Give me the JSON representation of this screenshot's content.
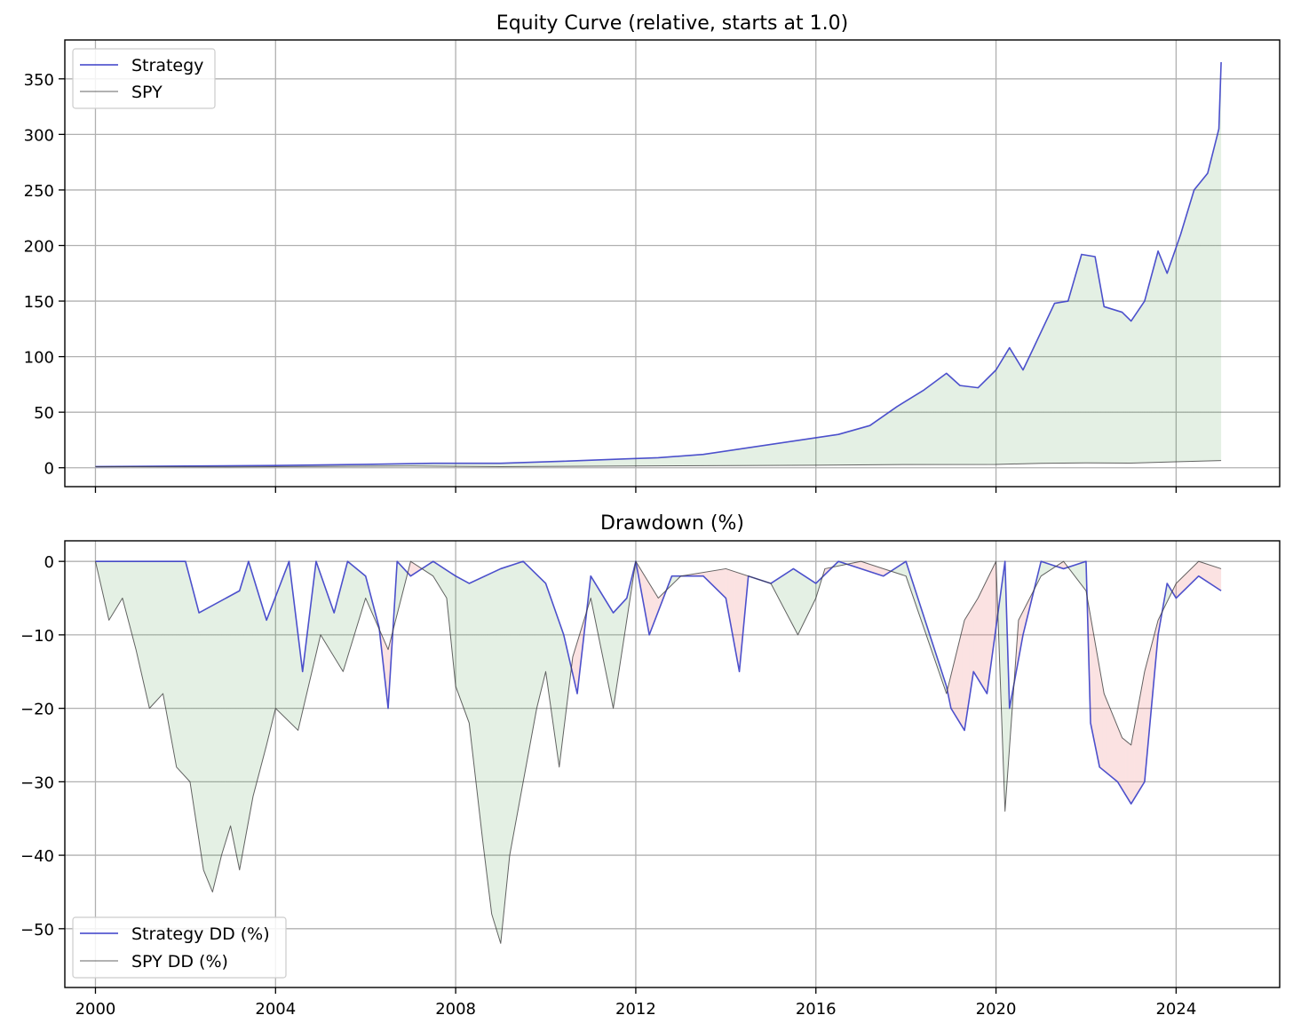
{
  "chart_data": [
    {
      "type": "line",
      "title": "Equity Curve (relative, starts at 1.0)",
      "xlabel": "",
      "ylabel": "",
      "xlim": [
        1999.32,
        2026.3
      ],
      "ylim": [
        -17,
        385
      ],
      "x_ticks": [
        2000,
        2004,
        2008,
        2012,
        2016,
        2020,
        2024
      ],
      "y_ticks": [
        0,
        50,
        100,
        150,
        200,
        250,
        300,
        350
      ],
      "y_tick_labels": [
        "0",
        "50",
        "100",
        "150",
        "200",
        "250",
        "300",
        "350"
      ],
      "show_x_tick_labels": false,
      "grid": true,
      "legend_position": "upper-left",
      "fill_between": {
        "color": "#2e8b2e",
        "opacity": 0.13,
        "where": "strategy above SPY"
      },
      "series": [
        {
          "name": "Strategy",
          "color": "#3a3ec8",
          "x": [
            2000,
            2002,
            2004,
            2006,
            2007.5,
            2009,
            2010.5,
            2011.8,
            2012.5,
            2013.5,
            2014.5,
            2015.5,
            2016.5,
            2017.2,
            2017.8,
            2018.4,
            2018.9,
            2019.2,
            2019.6,
            2020.0,
            2020.3,
            2020.6,
            2020.8,
            2021.3,
            2021.6,
            2021.9,
            2022.2,
            2022.4,
            2022.8,
            2023.0,
            2023.3,
            2023.6,
            2023.8,
            2024.1,
            2024.4,
            2024.7,
            2024.95,
            2025.0
          ],
          "y": [
            1,
            1.5,
            2,
            3,
            4,
            4,
            6,
            8,
            9,
            12,
            18,
            24,
            30,
            38,
            55,
            70,
            85,
            74,
            72,
            88,
            108,
            88,
            105,
            148,
            150,
            192,
            190,
            145,
            140,
            132,
            150,
            195,
            175,
            210,
            250,
            265,
            305,
            365
          ]
        },
        {
          "name": "SPY",
          "color": "#3d3d3d",
          "x": [
            2000,
            2003,
            2007,
            2009,
            2013,
            2016,
            2018,
            2020,
            2021,
            2022,
            2023,
            2024,
            2025
          ],
          "y": [
            1,
            0.8,
            1.6,
            1.0,
            1.8,
            2.3,
            2.9,
            3.0,
            4.0,
            4.4,
            4.2,
            5.4,
            6.5
          ]
        }
      ]
    },
    {
      "type": "line",
      "title": "Drawdown (%)",
      "xlabel": "",
      "ylabel": "",
      "xlim": [
        1999.32,
        2026.3
      ],
      "ylim": [
        -58,
        2.8
      ],
      "x_ticks": [
        2000,
        2004,
        2008,
        2012,
        2016,
        2020,
        2024
      ],
      "x_tick_labels": [
        "2000",
        "2004",
        "2008",
        "2012",
        "2016",
        "2020",
        "2024"
      ],
      "y_ticks": [
        0,
        -10,
        -20,
        -30,
        -40,
        -50
      ],
      "y_tick_labels": [
        "0",
        "−10",
        "−20",
        "−30",
        "−40",
        "−50"
      ],
      "grid": true,
      "legend_position": "lower-left",
      "fill_between_positive": {
        "color": "#2e8b2e",
        "opacity": 0.13,
        "where": "strategy DD above SPY DD"
      },
      "fill_between_negative": {
        "color": "#e33b3b",
        "opacity": 0.15,
        "where": "strategy DD below SPY DD"
      },
      "series": [
        {
          "name": "Strategy DD (%)",
          "color": "#3a3ec8",
          "x": [
            2000,
            2002.0,
            2002.3,
            2003.2,
            2003.4,
            2003.8,
            2004.3,
            2004.6,
            2004.9,
            2005.3,
            2005.6,
            2006.0,
            2006.3,
            2006.5,
            2006.7,
            2007.0,
            2007.5,
            2008.0,
            2008.3,
            2009.0,
            2009.5,
            2010.0,
            2010.4,
            2010.7,
            2011.0,
            2011.5,
            2011.8,
            2012.0,
            2012.3,
            2012.8,
            2013.5,
            2014.0,
            2014.3,
            2014.5,
            2015.0,
            2015.5,
            2016.0,
            2016.5,
            2017.5,
            2018.0,
            2018.9,
            2019.0,
            2019.3,
            2019.5,
            2019.8,
            2020.2,
            2020.3,
            2020.6,
            2021.0,
            2021.5,
            2022.0,
            2022.1,
            2022.3,
            2022.7,
            2023.0,
            2023.3,
            2023.6,
            2023.8,
            2024.0,
            2024.5,
            2025.0
          ],
          "y": [
            0,
            0,
            -7,
            -4,
            0,
            -8,
            0,
            -15,
            0,
            -7,
            0,
            -2,
            -9,
            -20,
            0,
            -2,
            0,
            -2,
            -3,
            -1,
            0,
            -3,
            -10,
            -18,
            -2,
            -7,
            -5,
            0,
            -10,
            -2,
            -2,
            -5,
            -15,
            -2,
            -3,
            -1,
            -3,
            0,
            -2,
            0,
            -17,
            -20,
            -23,
            -15,
            -18,
            0,
            -20,
            -10,
            0,
            -1,
            0,
            -22,
            -28,
            -30,
            -33,
            -30,
            -10,
            -3,
            -5,
            -2,
            -4
          ]
        },
        {
          "name": "SPY DD (%)",
          "color": "#3d3d3d",
          "x": [
            2000,
            2000.3,
            2000.6,
            2000.9,
            2001.2,
            2001.5,
            2001.8,
            2002.1,
            2002.4,
            2002.6,
            2002.8,
            2003.0,
            2003.2,
            2003.5,
            2003.8,
            2004.0,
            2004.5,
            2005.0,
            2005.5,
            2006.0,
            2006.5,
            2007.0,
            2007.5,
            2007.8,
            2008.0,
            2008.3,
            2008.6,
            2008.8,
            2009.0,
            2009.2,
            2009.5,
            2009.8,
            2010.0,
            2010.3,
            2010.6,
            2011.0,
            2011.5,
            2011.7,
            2012.0,
            2012.5,
            2013.0,
            2014.0,
            2015.0,
            2015.6,
            2016.0,
            2016.2,
            2017.0,
            2018.0,
            2018.9,
            2019.3,
            2019.6,
            2020.0,
            2020.2,
            2020.5,
            2021.0,
            2021.5,
            2022.0,
            2022.4,
            2022.8,
            2023.0,
            2023.3,
            2023.6,
            2024.0,
            2024.5,
            2025.0
          ],
          "y": [
            0,
            -8,
            -5,
            -12,
            -20,
            -18,
            -28,
            -30,
            -42,
            -45,
            -40,
            -36,
            -42,
            -32,
            -25,
            -20,
            -23,
            -10,
            -15,
            -5,
            -12,
            0,
            -2,
            -5,
            -17,
            -22,
            -38,
            -48,
            -52,
            -40,
            -30,
            -20,
            -15,
            -28,
            -13,
            -5,
            -20,
            -12,
            0,
            -5,
            -2,
            -1,
            -3,
            -10,
            -5,
            -1,
            0,
            -2,
            -18,
            -8,
            -5,
            0,
            -34,
            -8,
            -2,
            0,
            -4,
            -18,
            -24,
            -25,
            -15,
            -8,
            -3,
            0,
            -1
          ]
        }
      ]
    }
  ]
}
